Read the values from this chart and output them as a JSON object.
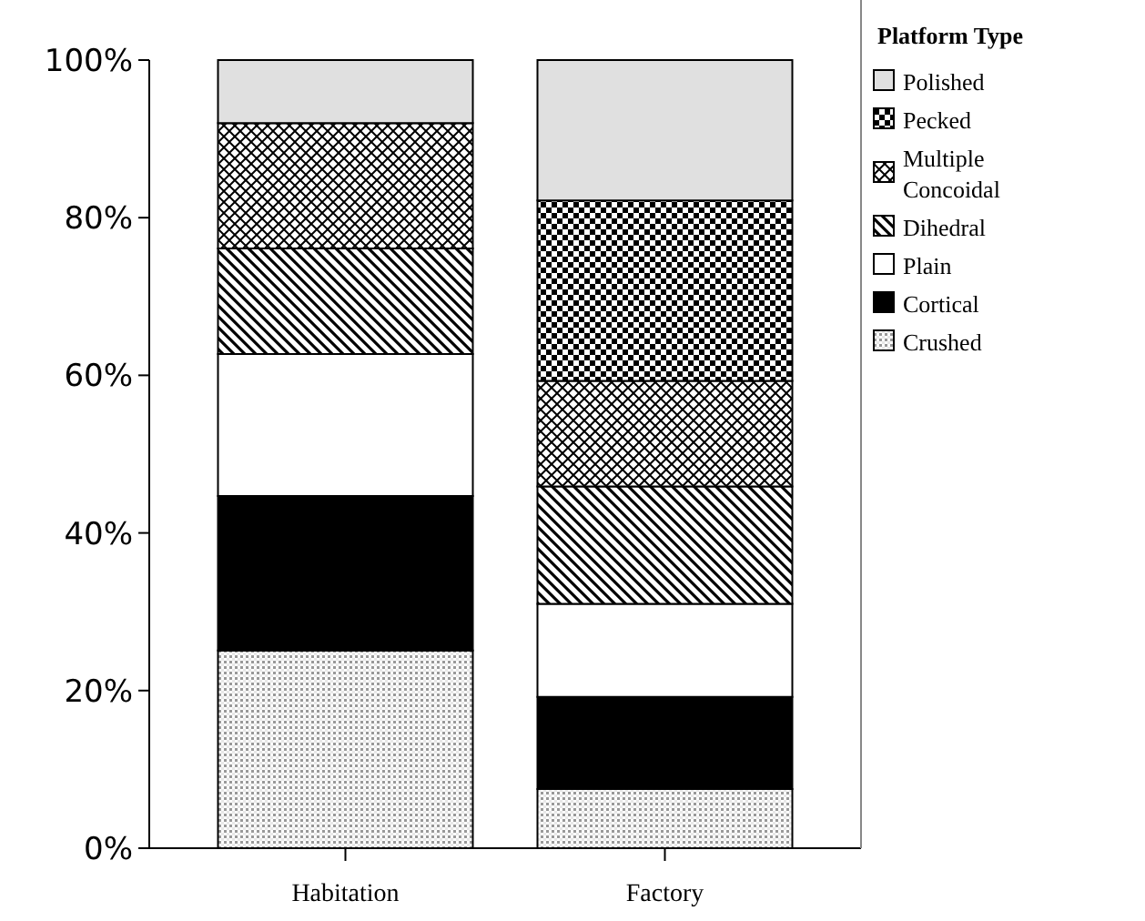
{
  "chart_data": {
    "type": "bar",
    "stacked": true,
    "categories": [
      "Habitation",
      "Factory"
    ],
    "legend_title": "Platform Type",
    "legend": "top right",
    "grid": false,
    "ylim": [
      0,
      100
    ],
    "yticks": [
      {
        "value": 0,
        "label": "0%"
      },
      {
        "value": 20,
        "label": "20%"
      },
      {
        "value": 40,
        "label": "40%"
      },
      {
        "value": 60,
        "label": "60%"
      },
      {
        "value": 80,
        "label": "80%"
      },
      {
        "value": 100,
        "label": "100%"
      }
    ],
    "series": [
      {
        "name": "Crushed",
        "color": "#d8d8d8",
        "values": [
          25.1,
          7.5
        ]
      },
      {
        "name": "Cortical",
        "color": "#000000",
        "values": [
          19.6,
          11.7
        ]
      },
      {
        "name": "Plain",
        "color": "#ffffff",
        "values": [
          18.0,
          11.8
        ]
      },
      {
        "name": "Dihedral",
        "color": "#808080",
        "values": [
          13.4,
          14.9
        ]
      },
      {
        "name": "Multiple Concoidal",
        "color": "#c0c0c0",
        "values": [
          15.9,
          13.4
        ]
      },
      {
        "name": "Pecked",
        "color": "#505050",
        "values": [
          0,
          22.9
        ]
      },
      {
        "name": "Polished",
        "color": "#e0e0e0",
        "values": [
          8.0,
          17.8
        ]
      }
    ]
  }
}
